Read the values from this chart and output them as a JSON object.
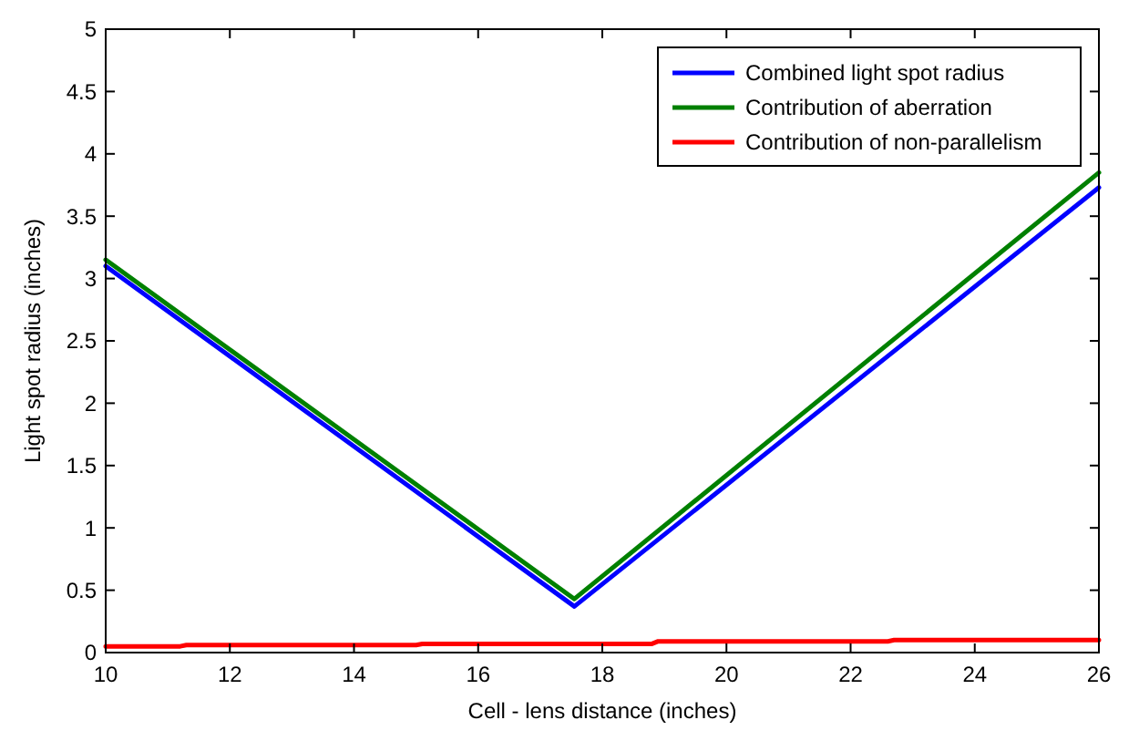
{
  "chart_data": {
    "type": "line",
    "xlabel": "Cell - lens distance (inches)",
    "ylabel": "Light spot radius (inches)",
    "xlim": [
      10,
      26
    ],
    "ylim": [
      0,
      5
    ],
    "xticks": [
      10,
      12,
      14,
      16,
      18,
      20,
      22,
      24,
      26
    ],
    "yticks": [
      0,
      0.5,
      1,
      1.5,
      2,
      2.5,
      3,
      3.5,
      4,
      4.5,
      5
    ],
    "grid": false,
    "legend": "top right",
    "line_style": "solid",
    "marker": "none",
    "series": [
      {
        "name": "Combined light spot radius",
        "color": "#0000ff",
        "x": [
          10,
          17.55,
          26
        ],
        "values": [
          3.1,
          0.37,
          3.73
        ]
      },
      {
        "name": "Contribution of aberration",
        "color": "#008000",
        "x": [
          10,
          17.55,
          26
        ],
        "values": [
          3.15,
          0.43,
          3.85
        ]
      },
      {
        "name": "Contribution of non-parallelism",
        "color": "#ff0000",
        "x": [
          10,
          11.2,
          11.3,
          15,
          15.1,
          18.8,
          18.9,
          22.6,
          22.7,
          26
        ],
        "values": [
          0.05,
          0.05,
          0.06,
          0.06,
          0.07,
          0.07,
          0.09,
          0.09,
          0.1,
          0.1
        ]
      }
    ]
  }
}
